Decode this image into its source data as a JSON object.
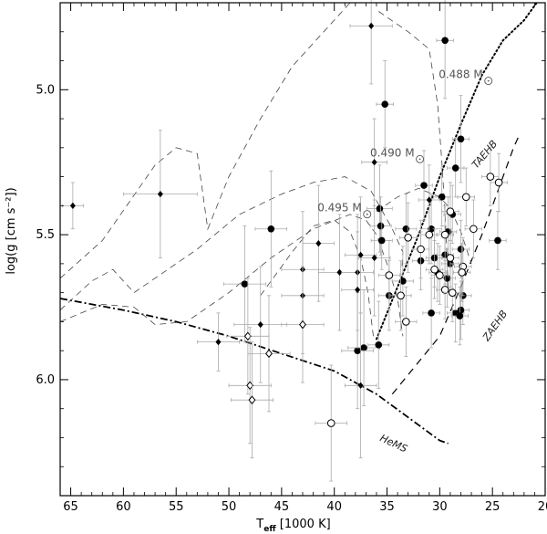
{
  "chart_data": {
    "type": "scatter",
    "title": "",
    "xlabel": {
      "main": "T",
      "sub": "eff",
      "rest": " [1000 K]"
    },
    "ylabel": "log(g [cm s⁻²])",
    "xlim": [
      66,
      20
    ],
    "ylim": [
      6.4,
      4.7
    ],
    "x_inverted": true,
    "y_inverted": true,
    "xticks": [
      65,
      60,
      55,
      50,
      45,
      40,
      35,
      30,
      25,
      20
    ],
    "yticks": [
      5.0,
      5.5,
      6.0
    ],
    "ytick_labels": [
      "5.0",
      "5.5",
      "6.0"
    ],
    "grid": false,
    "legend": "none",
    "annotations": [
      {
        "text": "0.488 M",
        "x": 28.0,
        "y": 4.96,
        "style": "track",
        "sun": true
      },
      {
        "text": "0.490 M",
        "x": 34.5,
        "y": 5.23,
        "style": "track",
        "sun": true
      },
      {
        "text": "0.495 M",
        "x": 39.5,
        "y": 5.42,
        "style": "track",
        "sun": true
      },
      {
        "text": "TAEHB",
        "x": 25.5,
        "y": 5.23,
        "style": "line",
        "rotate": -50
      },
      {
        "text": "ZAEHB",
        "x": 24.5,
        "y": 5.82,
        "style": "line",
        "rotate": -55
      },
      {
        "text": "HeMS",
        "x": 34.5,
        "y": 6.23,
        "style": "line",
        "rotate": 25
      }
    ],
    "series": [
      {
        "marker": "filled-circle",
        "points": [
          {
            "x": 29.5,
            "y": 4.83,
            "ex": 0.8,
            "ey": 0.2
          },
          {
            "x": 35.2,
            "y": 5.05,
            "ex": 0.8,
            "ey": 0.15
          },
          {
            "x": 28.0,
            "y": 5.17,
            "ex": 0.8,
            "ey": 0.15
          },
          {
            "x": 28.5,
            "y": 5.27,
            "ex": 0.8,
            "ey": 0.1
          },
          {
            "x": 31.5,
            "y": 5.33,
            "ex": 0.8,
            "ey": 0.12
          },
          {
            "x": 29.8,
            "y": 5.37,
            "ex": 0.8,
            "ey": 0.1
          },
          {
            "x": 35.7,
            "y": 5.41,
            "ex": 1.2,
            "ey": 0.15
          },
          {
            "x": 28.8,
            "y": 5.43,
            "ex": 0.8,
            "ey": 0.1
          },
          {
            "x": 35.6,
            "y": 5.47,
            "ex": 1.0,
            "ey": 0.1
          },
          {
            "x": 46.0,
            "y": 5.48,
            "ex": 1.5,
            "ey": 0.2
          },
          {
            "x": 33.2,
            "y": 5.48,
            "ex": 1.0,
            "ey": 0.12
          },
          {
            "x": 30.8,
            "y": 5.48,
            "ex": 1.0,
            "ey": 0.12
          },
          {
            "x": 29.2,
            "y": 5.49,
            "ex": 0.8,
            "ey": 0.12
          },
          {
            "x": 35.5,
            "y": 5.52,
            "ex": 1.0,
            "ey": 0.1
          },
          {
            "x": 24.5,
            "y": 5.52,
            "ex": 0.8,
            "ey": 0.1
          },
          {
            "x": 31.8,
            "y": 5.59,
            "ex": 0.8,
            "ey": 0.1
          },
          {
            "x": 28.0,
            "y": 5.55,
            "ex": 0.8,
            "ey": 0.1
          },
          {
            "x": 29.5,
            "y": 5.57,
            "ex": 0.8,
            "ey": 0.1
          },
          {
            "x": 30.5,
            "y": 5.58,
            "ex": 0.8,
            "ey": 0.1
          },
          {
            "x": 29.0,
            "y": 5.6,
            "ex": 0.8,
            "ey": 0.1
          },
          {
            "x": 48.5,
            "y": 5.67,
            "ex": 2.0,
            "ey": 0.2
          },
          {
            "x": 33.5,
            "y": 5.66,
            "ex": 1.0,
            "ey": 0.12
          },
          {
            "x": 30.2,
            "y": 5.63,
            "ex": 0.8,
            "ey": 0.1
          },
          {
            "x": 29.3,
            "y": 5.65,
            "ex": 0.8,
            "ey": 0.1
          },
          {
            "x": 34.8,
            "y": 5.71,
            "ex": 1.0,
            "ey": 0.12
          },
          {
            "x": 27.8,
            "y": 5.71,
            "ex": 0.8,
            "ey": 0.1
          },
          {
            "x": 30.8,
            "y": 5.77,
            "ex": 0.8,
            "ey": 0.12
          },
          {
            "x": 28.5,
            "y": 5.77,
            "ex": 0.8,
            "ey": 0.1
          },
          {
            "x": 28.0,
            "y": 5.76,
            "ex": 0.8,
            "ey": 0.1
          },
          {
            "x": 28.1,
            "y": 5.78,
            "ex": 0.8,
            "ey": 0.1
          },
          {
            "x": 37.2,
            "y": 5.89,
            "ex": 1.5,
            "ey": 0.2
          },
          {
            "x": 37.8,
            "y": 5.9,
            "ex": 1.5,
            "ey": 0.2
          },
          {
            "x": 35.8,
            "y": 5.88,
            "ex": 1.0,
            "ey": 0.15
          }
        ]
      },
      {
        "marker": "filled-diamond",
        "points": [
          {
            "x": 36.5,
            "y": 4.78,
            "ex": 2.0,
            "ey": 0.2
          },
          {
            "x": 64.8,
            "y": 5.4,
            "ex": 1.0,
            "ey": 0.08
          },
          {
            "x": 56.5,
            "y": 5.36,
            "ex": 3.5,
            "ey": 0.22
          },
          {
            "x": 36.2,
            "y": 5.25,
            "ex": 1.2,
            "ey": 0.15
          },
          {
            "x": 31.0,
            "y": 5.38,
            "ex": 1.0,
            "ey": 0.12
          },
          {
            "x": 41.5,
            "y": 5.53,
            "ex": 1.5,
            "ey": 0.2
          },
          {
            "x": 43.0,
            "y": 5.62,
            "ex": 2.0,
            "ey": 0.2
          },
          {
            "x": 39.5,
            "y": 5.63,
            "ex": 2.0,
            "ey": 0.2
          },
          {
            "x": 37.8,
            "y": 5.63,
            "ex": 1.5,
            "ey": 0.2
          },
          {
            "x": 37.5,
            "y": 5.57,
            "ex": 1.5,
            "ey": 0.2
          },
          {
            "x": 36.2,
            "y": 5.58,
            "ex": 1.5,
            "ey": 0.2
          },
          {
            "x": 37.8,
            "y": 5.69,
            "ex": 1.5,
            "ey": 0.2
          },
          {
            "x": 43.0,
            "y": 5.71,
            "ex": 2.0,
            "ey": 0.2
          },
          {
            "x": 47.0,
            "y": 5.81,
            "ex": 2.5,
            "ey": 0.2
          },
          {
            "x": 51.0,
            "y": 5.87,
            "ex": 2.0,
            "ey": 0.1
          },
          {
            "x": 37.5,
            "y": 6.02,
            "ex": 1.5,
            "ey": 0.25
          }
        ]
      },
      {
        "marker": "open-diamond",
        "points": [
          {
            "x": 48.2,
            "y": 5.85,
            "ex": 2.0,
            "ey": 0.2
          },
          {
            "x": 46.2,
            "y": 5.91,
            "ex": 2.0,
            "ey": 0.2
          },
          {
            "x": 43.0,
            "y": 5.81,
            "ex": 2.0,
            "ey": 0.2
          },
          {
            "x": 48.0,
            "y": 6.02,
            "ex": 2.0,
            "ey": 0.2
          },
          {
            "x": 47.8,
            "y": 6.07,
            "ex": 2.0,
            "ey": 0.2
          }
        ]
      },
      {
        "marker": "open-circle",
        "points": [
          {
            "x": 27.5,
            "y": 5.37,
            "ex": 0.8,
            "ey": 0.1
          },
          {
            "x": 25.2,
            "y": 5.3,
            "ex": 0.8,
            "ey": 0.1
          },
          {
            "x": 24.4,
            "y": 5.32,
            "ex": 0.8,
            "ey": 0.1
          },
          {
            "x": 29.0,
            "y": 5.42,
            "ex": 0.8,
            "ey": 0.1
          },
          {
            "x": 26.8,
            "y": 5.48,
            "ex": 0.8,
            "ey": 0.1
          },
          {
            "x": 33.0,
            "y": 5.51,
            "ex": 0.8,
            "ey": 0.12
          },
          {
            "x": 31.0,
            "y": 5.5,
            "ex": 0.8,
            "ey": 0.1
          },
          {
            "x": 29.5,
            "y": 5.5,
            "ex": 0.8,
            "ey": 0.1
          },
          {
            "x": 31.8,
            "y": 5.55,
            "ex": 0.8,
            "ey": 0.1
          },
          {
            "x": 29.0,
            "y": 5.58,
            "ex": 0.8,
            "ey": 0.1
          },
          {
            "x": 30.5,
            "y": 5.62,
            "ex": 0.8,
            "ey": 0.1
          },
          {
            "x": 27.8,
            "y": 5.61,
            "ex": 0.8,
            "ey": 0.1
          },
          {
            "x": 27.9,
            "y": 5.63,
            "ex": 0.8,
            "ey": 0.1
          },
          {
            "x": 34.8,
            "y": 5.64,
            "ex": 1.0,
            "ey": 0.12
          },
          {
            "x": 30.0,
            "y": 5.64,
            "ex": 0.8,
            "ey": 0.1
          },
          {
            "x": 33.7,
            "y": 5.71,
            "ex": 1.0,
            "ey": 0.12
          },
          {
            "x": 29.5,
            "y": 5.69,
            "ex": 0.8,
            "ey": 0.1
          },
          {
            "x": 28.8,
            "y": 5.7,
            "ex": 0.8,
            "ey": 0.1
          },
          {
            "x": 33.2,
            "y": 5.8,
            "ex": 1.0,
            "ey": 0.12
          },
          {
            "x": 40.3,
            "y": 6.15,
            "ex": 1.5,
            "ey": 0.2
          }
        ]
      }
    ],
    "lines": [
      {
        "style": "dashdot",
        "points": [
          [
            66,
            5.72
          ],
          [
            60,
            5.76
          ],
          [
            55,
            5.8
          ],
          [
            50,
            5.85
          ],
          [
            45,
            5.91
          ],
          [
            40,
            5.97
          ],
          [
            36,
            6.05
          ],
          [
            33,
            6.13
          ],
          [
            30,
            6.21
          ],
          [
            29.2,
            6.22
          ]
        ]
      },
      {
        "style": "dotted",
        "points": [
          [
            36,
            5.86
          ],
          [
            34,
            5.68
          ],
          [
            32,
            5.5
          ],
          [
            30,
            5.3
          ],
          [
            28,
            5.12
          ],
          [
            26,
            4.95
          ],
          [
            24,
            4.83
          ],
          [
            22,
            4.76
          ],
          [
            20.8,
            4.7
          ]
        ]
      },
      {
        "style": "dashed",
        "points": [
          [
            34.5,
            6.05
          ],
          [
            30,
            5.85
          ],
          [
            28,
            5.68
          ],
          [
            26,
            5.5
          ],
          [
            24.5,
            5.35
          ],
          [
            23,
            5.2
          ],
          [
            22.5,
            5.16
          ]
        ]
      },
      {
        "style": "dashed-thin",
        "points": [
          [
            66,
            5.65
          ],
          [
            62,
            5.52
          ],
          [
            57,
            5.26
          ],
          [
            55,
            5.2
          ],
          [
            53,
            5.22
          ],
          [
            52,
            5.48
          ],
          [
            50,
            5.3
          ],
          [
            47,
            5.1
          ],
          [
            44,
            4.92
          ],
          [
            41,
            4.8
          ],
          [
            38.5,
            4.7
          ]
        ]
      },
      {
        "style": "dashed-thin",
        "points": [
          [
            66,
            5.8
          ],
          [
            62,
            5.74
          ],
          [
            59,
            5.75
          ],
          [
            57,
            5.81
          ],
          [
            54,
            5.8
          ],
          [
            50,
            5.7
          ],
          [
            46,
            5.58
          ],
          [
            42,
            5.48
          ],
          [
            38.5,
            5.43
          ],
          [
            37,
            5.45
          ],
          [
            36,
            5.5
          ],
          [
            35,
            5.6
          ],
          [
            34,
            5.72
          ],
          [
            33.5,
            5.85
          ]
        ]
      },
      {
        "style": "dashed-thin",
        "points": [
          [
            66,
            5.76
          ],
          [
            63,
            5.66
          ],
          [
            61,
            5.62
          ],
          [
            59,
            5.7
          ],
          [
            57,
            5.65
          ],
          [
            53,
            5.55
          ],
          [
            49,
            5.43
          ],
          [
            45,
            5.36
          ],
          [
            42,
            5.32
          ],
          [
            39,
            5.3
          ],
          [
            36.5,
            5.35
          ],
          [
            34.5,
            5.48
          ],
          [
            33.5,
            5.56
          ],
          [
            33.6,
            5.62
          ]
        ]
      },
      {
        "style": "dashed-thin",
        "points": [
          [
            47,
            5.71
          ],
          [
            44,
            5.56
          ],
          [
            42,
            5.47
          ],
          [
            40,
            5.45
          ],
          [
            38.5,
            5.49
          ],
          [
            37.5,
            5.58
          ],
          [
            36.8,
            5.7
          ],
          [
            36.3,
            5.85
          ]
        ]
      },
      {
        "style": "dashed-thin",
        "points": [
          [
            35.8,
            4.73
          ],
          [
            33,
            4.8
          ],
          [
            31,
            4.86
          ],
          [
            30.2,
            5.05
          ],
          [
            29.8,
            5.25
          ],
          [
            29.5,
            5.42
          ],
          [
            29.3,
            5.58
          ],
          [
            29.2,
            5.7
          ]
        ]
      },
      {
        "style": "dashed-thin",
        "points": [
          [
            36,
            5.42
          ],
          [
            34,
            5.37
          ],
          [
            32,
            5.34
          ],
          [
            30,
            5.37
          ],
          [
            29,
            5.41
          ],
          [
            28,
            5.49
          ],
          [
            27,
            5.6
          ]
        ]
      }
    ]
  }
}
